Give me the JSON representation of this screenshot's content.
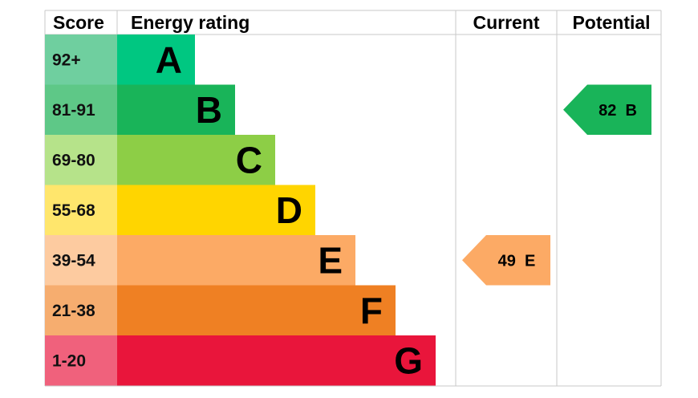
{
  "chart_data": {
    "type": "bar",
    "headers": {
      "score": "Score",
      "rating": "Energy rating",
      "current": "Current",
      "potential": "Potential"
    },
    "bands": [
      {
        "score": "92+",
        "letter": "A",
        "color": "#00c781",
        "score_color": "#6fcf9f"
      },
      {
        "score": "81-91",
        "letter": "B",
        "color": "#19b459",
        "score_color": "#5ec887"
      },
      {
        "score": "69-80",
        "letter": "C",
        "color": "#8dce46",
        "score_color": "#b6e38a"
      },
      {
        "score": "55-68",
        "letter": "D",
        "color": "#ffd500",
        "score_color": "#ffe66c"
      },
      {
        "score": "39-54",
        "letter": "E",
        "color": "#fcaa65",
        "score_color": "#fdcba0"
      },
      {
        "score": "21-38",
        "letter": "F",
        "color": "#ef8023",
        "score_color": "#f6ad6f"
      },
      {
        "score": "1-20",
        "letter": "G",
        "color": "#e9153b",
        "score_color": "#f0617c"
      }
    ],
    "current": {
      "value": 49,
      "letter": "E",
      "label": "49  E",
      "color": "#fcaa65"
    },
    "potential": {
      "value": 82,
      "letter": "B",
      "label": "82  B",
      "color": "#19b459"
    }
  }
}
